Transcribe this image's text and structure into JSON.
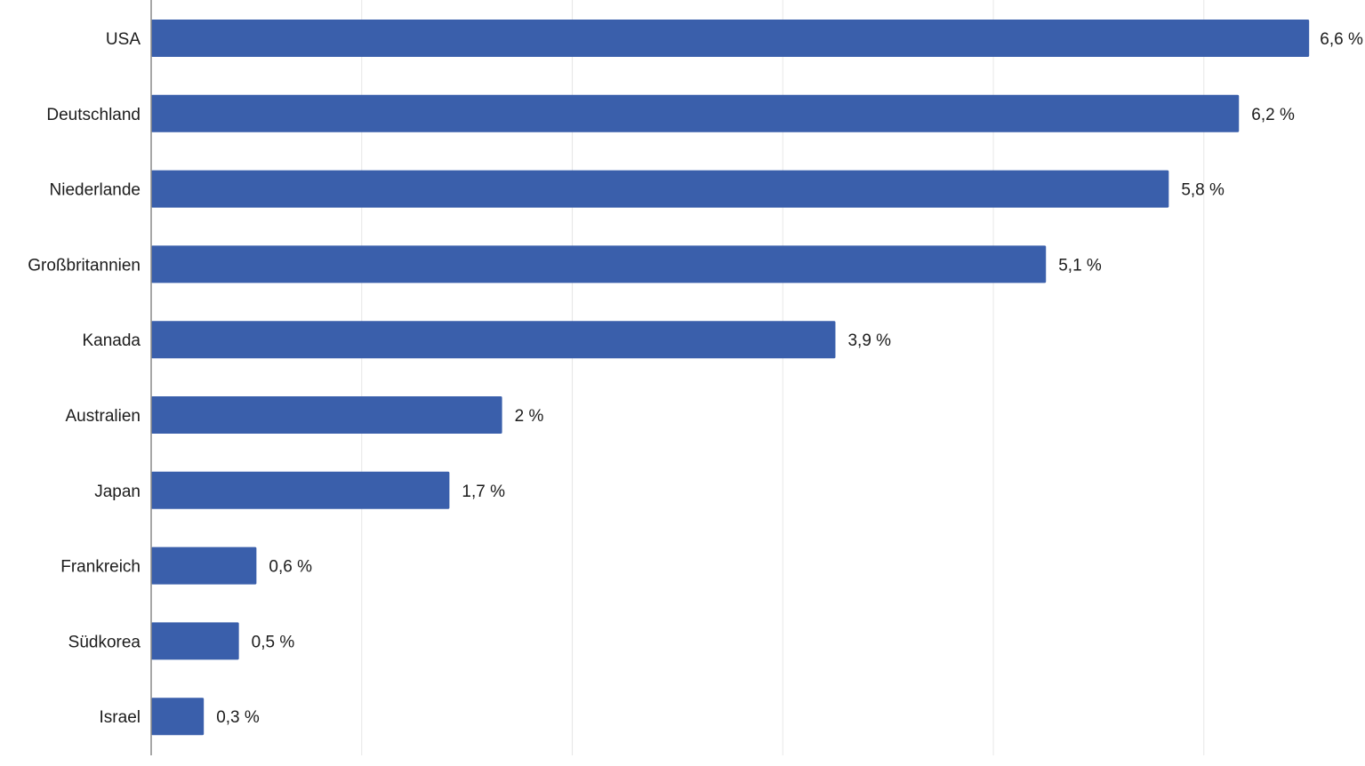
{
  "chart_data": {
    "type": "bar",
    "orientation": "horizontal",
    "categories": [
      "USA",
      "Deutschland",
      "Niederlande",
      "Großbritannien",
      "Kanada",
      "Australien",
      "Japan",
      "Frankreich",
      "Südkorea",
      "Israel"
    ],
    "values": [
      6.6,
      6.2,
      5.8,
      5.1,
      3.9,
      2,
      1.7,
      0.6,
      0.5,
      0.3
    ],
    "value_labels": [
      "6,6 %",
      "6,2 %",
      "5,8 %",
      "5,1 %",
      "3,9 %",
      "2 %",
      "1,7 %",
      "0,6 %",
      "0,5 %",
      "0,3 %"
    ],
    "xlim": [
      0,
      7
    ],
    "grid": true,
    "legend": "none",
    "title": "",
    "xlabel": "",
    "ylabel": ""
  },
  "colors": {
    "bar": "#3a5fab",
    "grid": "#e6e6e6",
    "axis": "#8a8a8a",
    "text": "#1c1c1c"
  }
}
